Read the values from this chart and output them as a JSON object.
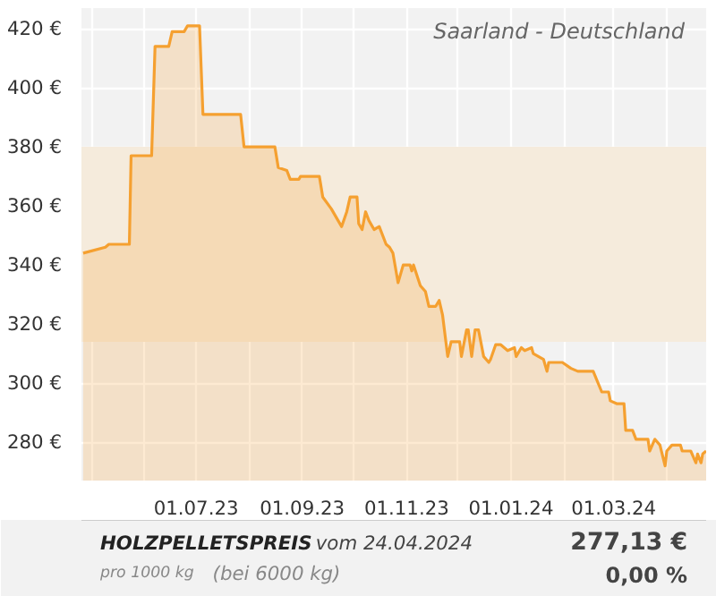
{
  "chart_data": {
    "type": "area",
    "title": "HOLZPELLETSPREIS",
    "subtitle": "Saarland - Deutschland",
    "annotations": [
      "vom 24.04.2024",
      "pro 1000 kg",
      "(bei 6000 kg)",
      "277,13 €",
      "0,00 %"
    ],
    "x": [
      "2023-04-26",
      "2023-05-09",
      "2023-05-11",
      "2023-05-23",
      "2023-05-24",
      "2023-06-05",
      "2023-06-07",
      "2023-06-15",
      "2023-06-17",
      "2023-06-24",
      "2023-06-26",
      "2023-07-03",
      "2023-07-05",
      "2023-07-27",
      "2023-07-29",
      "2023-08-16",
      "2023-08-18",
      "2023-08-23",
      "2023-08-25",
      "2023-08-30",
      "2023-08-31",
      "2023-09-11",
      "2023-09-13",
      "2023-09-18",
      "2023-09-22",
      "2023-09-24",
      "2023-09-27",
      "2023-09-29",
      "2023-10-03",
      "2023-10-04",
      "2023-10-06",
      "2023-10-08",
      "2023-10-10",
      "2023-10-13",
      "2023-10-16",
      "2023-10-20",
      "2023-10-22",
      "2023-10-24",
      "2023-10-27",
      "2023-10-30",
      "2023-11-03",
      "2023-11-04",
      "2023-11-05",
      "2023-11-09",
      "2023-11-12",
      "2023-11-14",
      "2023-11-18",
      "2023-11-20",
      "2023-11-22",
      "2023-11-25",
      "2023-11-27",
      "2023-12-02",
      "2023-12-03",
      "2023-12-06",
      "2023-12-07",
      "2023-12-09",
      "2023-12-11",
      "2023-12-13",
      "2023-12-16",
      "2023-12-19",
      "2023-12-20",
      "2023-12-23",
      "2023-12-26",
      "2023-12-30",
      "2024-01-03",
      "2024-01-04",
      "2024-01-07",
      "2024-01-09",
      "2024-01-13",
      "2024-01-14",
      "2024-01-17",
      "2024-01-20",
      "2024-01-22",
      "2024-01-23",
      "2024-01-31",
      "2024-02-05",
      "2024-02-09",
      "2024-02-18",
      "2024-02-23",
      "2024-02-27",
      "2024-02-28",
      "2024-03-03",
      "2024-03-07",
      "2024-03-08",
      "2024-03-12",
      "2024-03-14",
      "2024-03-21",
      "2024-03-22",
      "2024-03-25",
      "2024-03-28",
      "2024-03-31",
      "2024-04-01",
      "2024-04-04",
      "2024-04-09",
      "2024-04-10",
      "2024-04-15",
      "2024-04-18",
      "2024-04-19",
      "2024-04-21",
      "2024-04-22",
      "2024-04-24"
    ],
    "series": [
      {
        "color": "#f5a030",
        "values": [
          344,
          346,
          347,
          347,
          377,
          377,
          414,
          414,
          419,
          419,
          421,
          421,
          391,
          391,
          380,
          380,
          373,
          372,
          369,
          369,
          370,
          370,
          363,
          359,
          355,
          353,
          358,
          363,
          363,
          354,
          352,
          358,
          355,
          352,
          353,
          347,
          346,
          344,
          334,
          340,
          340,
          338,
          340,
          333,
          331,
          326,
          326,
          328,
          323,
          309,
          314,
          314,
          309,
          318,
          318,
          309,
          318,
          318,
          309,
          307,
          308,
          313,
          313,
          311,
          312,
          309,
          312,
          311,
          312,
          310,
          309,
          308,
          304,
          307,
          307,
          305,
          304,
          304,
          297,
          297,
          294,
          293,
          293,
          284,
          284,
          281,
          281,
          277,
          281,
          279,
          272,
          277,
          279,
          279,
          277,
          277,
          273,
          276,
          273,
          276,
          277
        ]
      }
    ],
    "xlim": [
      "2023-04-25",
      "2024-04-24"
    ],
    "ylim": [
      267,
      427
    ],
    "yticks": [
      {
        "value": 280,
        "label": "280 €"
      },
      {
        "value": 300,
        "label": "300 €"
      },
      {
        "value": 320,
        "label": "320 €"
      },
      {
        "value": 340,
        "label": "340 €"
      },
      {
        "value": 360,
        "label": "360 €"
      },
      {
        "value": 380,
        "label": "380 €"
      },
      {
        "value": 400,
        "label": "400 €"
      },
      {
        "value": 420,
        "label": "420 €"
      }
    ],
    "xticks": [
      {
        "value": "2023-05-01",
        "label": null
      },
      {
        "value": "2023-06-01",
        "label": null
      },
      {
        "value": "2023-07-01",
        "label": "01.07.23"
      },
      {
        "value": "2023-08-01",
        "label": null
      },
      {
        "value": "2023-09-01",
        "label": "01.09.23"
      },
      {
        "value": "2023-10-01",
        "label": null
      },
      {
        "value": "2023-11-01",
        "label": "01.11.23"
      },
      {
        "value": "2023-12-01",
        "label": null
      },
      {
        "value": "2024-01-01",
        "label": "01.01.24"
      },
      {
        "value": "2024-02-01",
        "label": null
      },
      {
        "value": "2024-03-01",
        "label": "01.03.24"
      },
      {
        "value": "2024-04-01",
        "label": null
      }
    ],
    "bands": [
      {
        "axis": "y",
        "from": 314,
        "to": 380,
        "color": "#f5ebdc"
      }
    ],
    "grid": true,
    "marker": "none",
    "line_style": "solid"
  }
}
